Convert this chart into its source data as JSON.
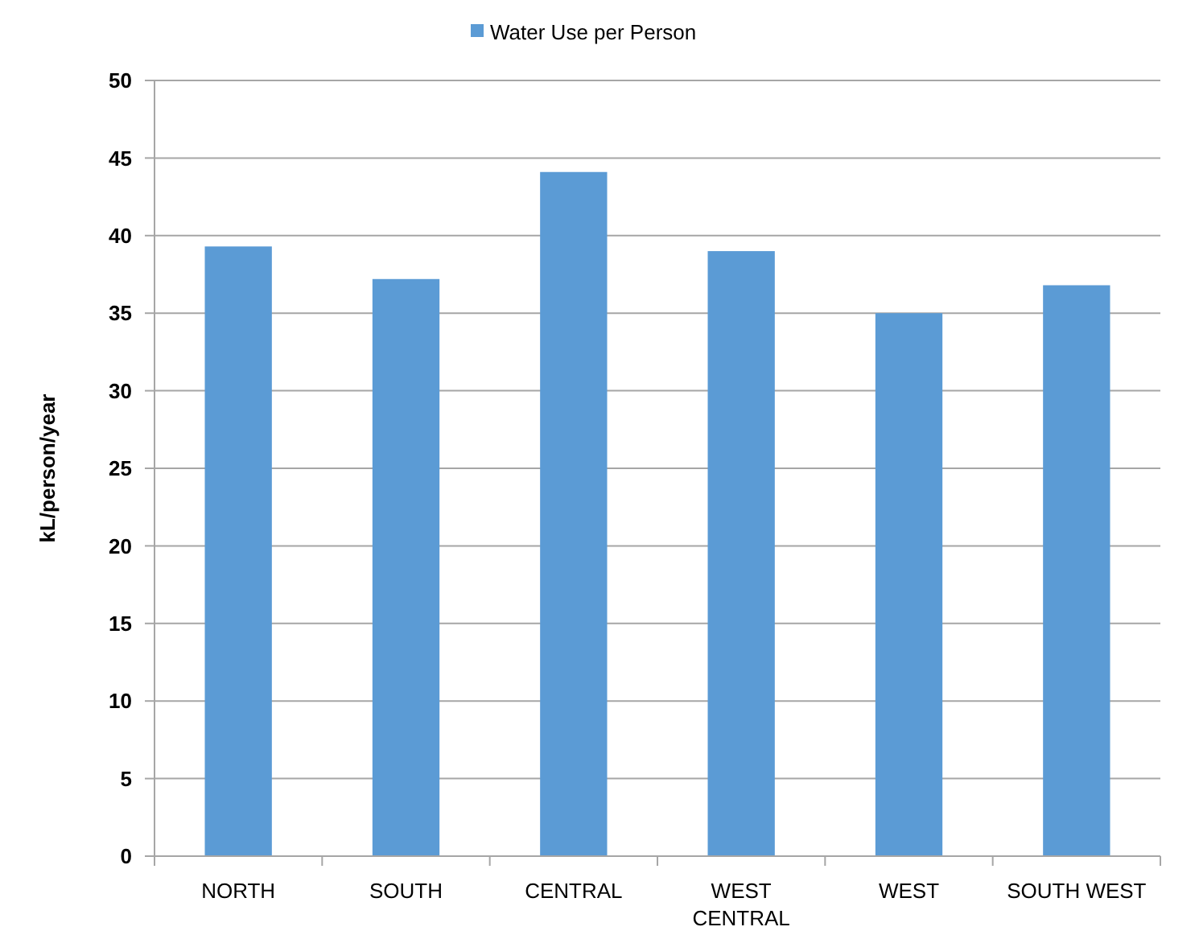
{
  "chart_data": {
    "type": "bar",
    "ylabel": "kL/person/year",
    "categories": [
      "NORTH",
      "SOUTH",
      "CENTRAL",
      "WEST CENTRAL",
      "WEST",
      "SOUTH WEST"
    ],
    "series": [
      {
        "name": "Water Use per Person",
        "color": "#5b9bd5",
        "values": [
          39.3,
          37.2,
          44.1,
          39.0,
          35.0,
          36.8
        ]
      }
    ],
    "ylim": [
      0,
      50
    ],
    "yticks": [
      0,
      5,
      10,
      15,
      20,
      25,
      30,
      35,
      40,
      45,
      50
    ],
    "grid": "y",
    "legend": "top"
  }
}
